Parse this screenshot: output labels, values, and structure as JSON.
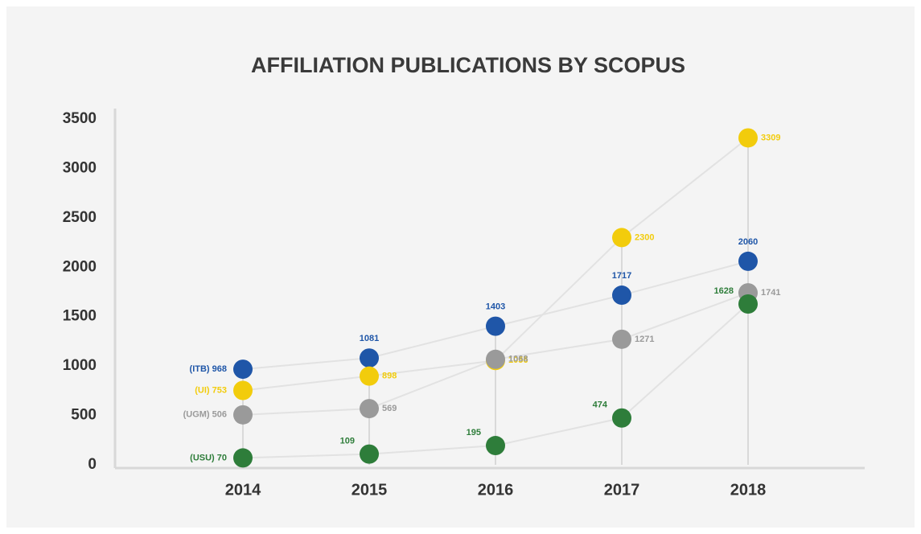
{
  "chart_data": {
    "type": "line",
    "title": "AFFILIATION PUBLICATIONS BY SCOPUS",
    "categories": [
      "2014",
      "2015",
      "2016",
      "2017",
      "2018"
    ],
    "ylim": [
      0,
      3500
    ],
    "yticks": [
      0,
      500,
      1000,
      1500,
      2000,
      2500,
      3000,
      3500
    ],
    "series": [
      {
        "name": "ITB",
        "color": "#1f56a8",
        "values": [
          968,
          1081,
          1403,
          1717,
          2060
        ],
        "value_labels": [
          "(ITB) 968",
          "1081",
          "1403",
          "1717",
          "2060"
        ]
      },
      {
        "name": "UI",
        "color": "#f2cc0c",
        "values": [
          753,
          898,
          1056,
          2300,
          3309
        ],
        "value_labels": [
          "(UI) 753",
          "898",
          "1056",
          "2300",
          "3309"
        ]
      },
      {
        "name": "UGM",
        "color": "#9a9a9a",
        "values": [
          506,
          569,
          1068,
          1271,
          1741
        ],
        "value_labels": [
          "(UGM) 506",
          "569",
          "1068",
          "1271",
          "1741"
        ]
      },
      {
        "name": "USU",
        "color": "#2e7d3a",
        "values": [
          70,
          109,
          195,
          474,
          1628
        ],
        "value_labels": [
          "(USU) 70",
          "109",
          "195",
          "474",
          "1628"
        ]
      }
    ]
  }
}
